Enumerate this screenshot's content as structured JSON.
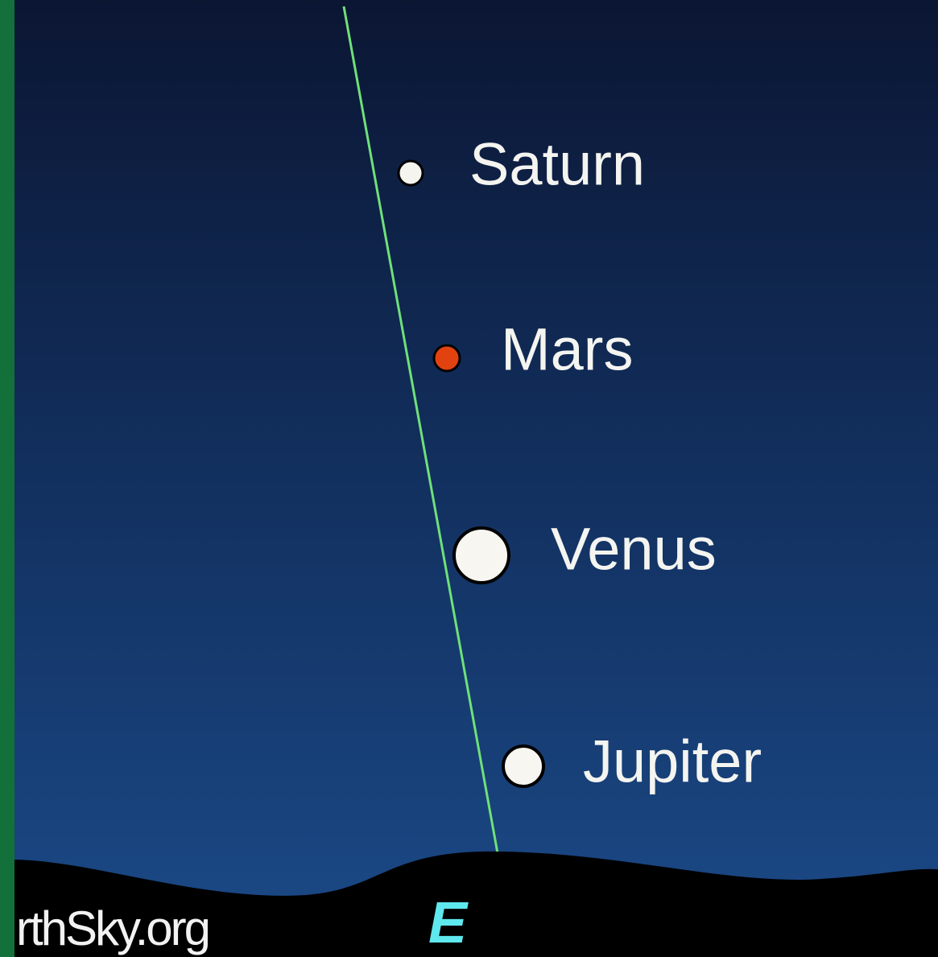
{
  "planets": [
    {
      "label": "Saturn"
    },
    {
      "label": "Mars"
    },
    {
      "label": "Venus"
    },
    {
      "label": "Jupiter"
    }
  ],
  "credit": "rthSky.org",
  "direction": "E"
}
